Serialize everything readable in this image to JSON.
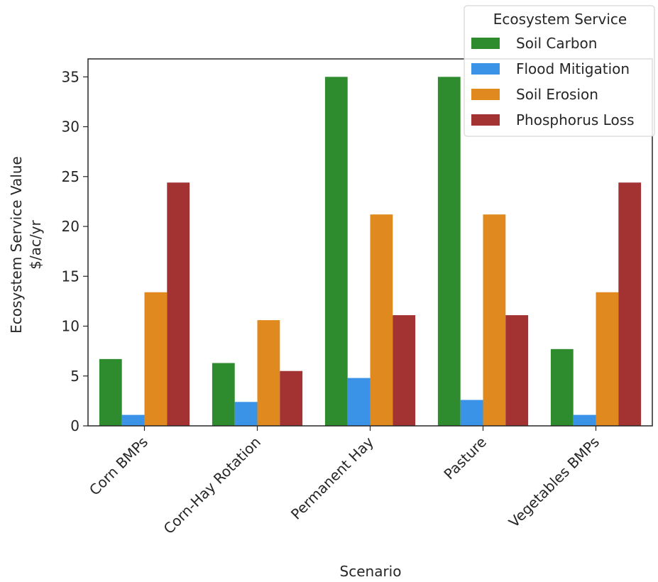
{
  "chart_data": {
    "type": "bar",
    "categories": [
      "Corn BMPs",
      "Corn-Hay Rotation",
      "Permanent Hay",
      "Pasture",
      "Vegetables BMPs"
    ],
    "series": [
      {
        "name": "Soil Carbon",
        "color": "#2e8b2e",
        "values": [
          6.7,
          6.3,
          35.0,
          35.0,
          7.7
        ]
      },
      {
        "name": "Flood Mitigation",
        "color": "#3a93e6",
        "values": [
          1.1,
          2.4,
          4.8,
          2.6,
          1.1
        ]
      },
      {
        "name": "Soil Erosion",
        "color": "#e0891e",
        "values": [
          13.4,
          10.6,
          21.2,
          21.2,
          13.4
        ]
      },
      {
        "name": "Phosphorus Loss",
        "color": "#a33232",
        "values": [
          24.4,
          5.5,
          11.1,
          11.1,
          24.4
        ]
      }
    ],
    "xlabel": "Scenario",
    "ylabel_line1": "Ecosystem Service Value",
    "ylabel_line2": "$/ac/yr",
    "ylim": [
      0,
      36.8
    ],
    "yticks": [
      0,
      5,
      10,
      15,
      20,
      25,
      30,
      35
    ],
    "legend_title": "Ecosystem Service",
    "legend_position": "top-right",
    "grid": false
  }
}
